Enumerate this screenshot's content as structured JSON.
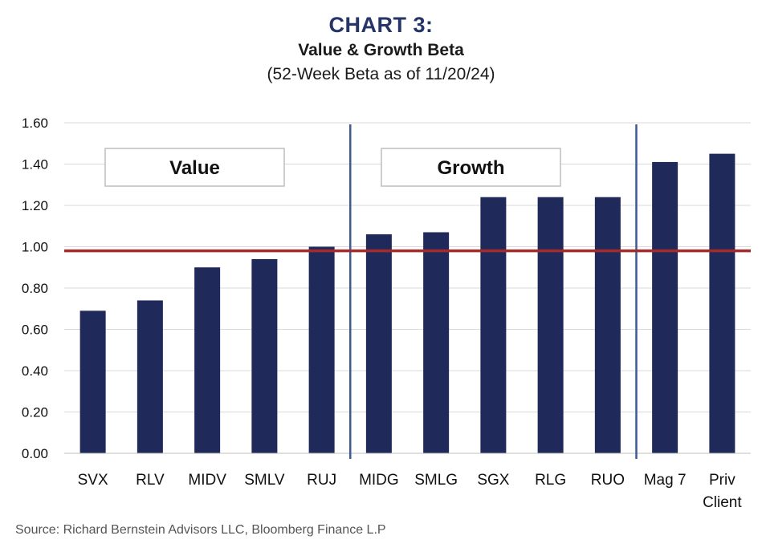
{
  "header": {
    "title": "CHART 3:",
    "subtitle": "Value & Growth Beta",
    "note": "(52-Week Beta as of 11/20/24)"
  },
  "source": "Source: Richard Bernstein Advisors LLC, Bloomberg Finance L.P",
  "chart_data": {
    "type": "bar",
    "categories": [
      "SVX",
      "RLV",
      "MIDV",
      "SMLV",
      "RUJ",
      "MIDG",
      "SMLG",
      "SGX",
      "RLG",
      "RUO",
      "Mag 7",
      "Priv Client"
    ],
    "category_lines": [
      [
        "SVX"
      ],
      [
        "RLV"
      ],
      [
        "MIDV"
      ],
      [
        "SMLV"
      ],
      [
        "RUJ"
      ],
      [
        "MIDG"
      ],
      [
        "SMLG"
      ],
      [
        "SGX"
      ],
      [
        "RLG"
      ],
      [
        "RUO"
      ],
      [
        "Mag 7"
      ],
      [
        "Priv",
        "Client"
      ]
    ],
    "values": [
      0.69,
      0.74,
      0.9,
      0.94,
      1.0,
      1.06,
      1.07,
      1.24,
      1.24,
      1.24,
      1.41,
      1.45
    ],
    "ylim": [
      0,
      1.6
    ],
    "yticks": [
      "0.00",
      "0.20",
      "0.40",
      "0.60",
      "0.80",
      "1.00",
      "1.20",
      "1.40",
      "1.60"
    ],
    "grid": true,
    "reference_line": 0.98,
    "group_labels": [
      "Value",
      "Growth"
    ],
    "group_dividers_after": [
      "RUJ",
      "RUO"
    ],
    "colors": {
      "bar": "#1f2a5a",
      "reference": "#a52a2a",
      "divider": "#3c5a96",
      "grid": "#d9d9d9",
      "title": "#263567"
    }
  }
}
